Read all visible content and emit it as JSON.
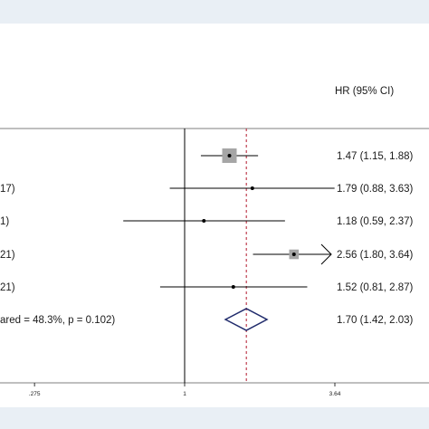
{
  "chart_data": {
    "type": "forest",
    "header": {
      "estimate_column": "HR (95% CI)"
    },
    "x_scale": "log",
    "x_ticks": [
      {
        "value": 0.275,
        "label": ".275"
      },
      {
        "value": 1,
        "label": "1"
      },
      {
        "value": 3.64,
        "label": "3.64"
      }
    ],
    "xlim": [
      0.17,
      5.3
    ],
    "reference_line": 1,
    "pooled_line": 1.7,
    "rows": [
      {
        "label": "",
        "hr": 1.47,
        "lo": 1.15,
        "hi": 1.88,
        "text": "1.47 (1.15, 1.88)",
        "weight": 1.0,
        "arrow": false,
        "kind": "study"
      },
      {
        "label": "17)",
        "hr": 1.79,
        "lo": 0.88,
        "hi": 3.63,
        "text": "1.79 (0.88, 3.63)",
        "weight": 0.12,
        "arrow": false,
        "kind": "study"
      },
      {
        "label": "1)",
        "hr": 1.18,
        "lo": 0.59,
        "hi": 2.37,
        "text": "1.18 (0.59, 2.37)",
        "weight": 0.12,
        "arrow": false,
        "kind": "study"
      },
      {
        "label": "21)",
        "hr": 2.56,
        "lo": 1.8,
        "hi": 3.64,
        "text": "2.56 (1.80, 3.64)",
        "weight": 0.55,
        "arrow": true,
        "kind": "study"
      },
      {
        "label": "21)",
        "hr": 1.52,
        "lo": 0.81,
        "hi": 2.87,
        "text": "1.52 (0.81, 2.87)",
        "weight": 0.12,
        "arrow": false,
        "kind": "study"
      },
      {
        "label": "ared = 48.3%, p = 0.102)",
        "hr": 1.7,
        "lo": 1.42,
        "hi": 2.03,
        "text": "1.70 (1.42, 2.03)",
        "weight": 0,
        "arrow": false,
        "kind": "overall"
      }
    ],
    "colors": {
      "band": "#e9eff5",
      "box": "#a6a6a6",
      "ci_line": "#000000",
      "diamond": "#1f2a6b",
      "pooled_line": "#b2182b"
    }
  }
}
